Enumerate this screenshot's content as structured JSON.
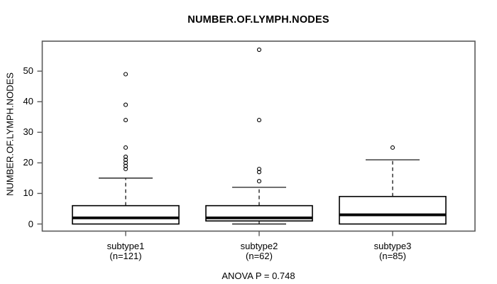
{
  "chart_data": {
    "type": "boxplot",
    "title": "NUMBER.OF.LYMPH.NODES",
    "ylabel": "NUMBER.OF.LYMPH.NODES",
    "xlabel": "",
    "annotation": "ANOVA P = 0.748",
    "ylim": [
      0,
      57
    ],
    "yticks": [
      0,
      10,
      20,
      30,
      40,
      50
    ],
    "grid": false,
    "frame_color": "#5a5a5a",
    "box_color": "#000000",
    "groups": [
      {
        "label": "subtype1",
        "sublabel": "(n=121)",
        "n": 121,
        "q1": 0,
        "median": 2,
        "q3": 6,
        "whisker_low": 0,
        "whisker_high": 15,
        "outliers": [
          18,
          19,
          20,
          21,
          22,
          25,
          34,
          39,
          49
        ]
      },
      {
        "label": "subtype2",
        "sublabel": "(n=62)",
        "n": 62,
        "q1": 1,
        "median": 2,
        "q3": 6,
        "whisker_low": 0,
        "whisker_high": 12,
        "outliers": [
          14,
          17,
          18,
          34,
          57
        ]
      },
      {
        "label": "subtype3",
        "sublabel": "(n=85)",
        "n": 85,
        "q1": 0,
        "median": 3,
        "q3": 9,
        "whisker_low": 0,
        "whisker_high": 21,
        "outliers": [
          25
        ]
      }
    ]
  }
}
